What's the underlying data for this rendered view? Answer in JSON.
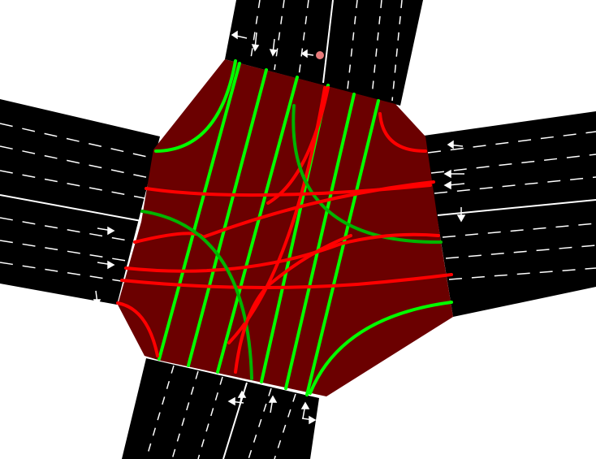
{
  "colors": {
    "background": "#ffffff",
    "road": "#000000",
    "lane_marking": "#ffffff",
    "junction": "#6b0000",
    "signal_green": "#00ff00",
    "signal_green_dark": "#00b400",
    "signal_red": "#ff0000",
    "vehicle_dot": "#e87a7a"
  },
  "roads": [
    {
      "name": "road-north",
      "lanes": 6
    },
    {
      "name": "road-west",
      "lanes": 7
    },
    {
      "name": "road-east",
      "lanes": 7
    },
    {
      "name": "road-south",
      "lanes": 6
    }
  ],
  "connections": [
    {
      "id": "n-turn-w",
      "state": "green"
    },
    {
      "id": "n-straight-1",
      "state": "green"
    },
    {
      "id": "n-straight-2",
      "state": "green"
    },
    {
      "id": "n-straight-3",
      "state": "green"
    },
    {
      "id": "n-straight-4",
      "state": "green"
    },
    {
      "id": "n-straight-5",
      "state": "green"
    },
    {
      "id": "n-turn-e",
      "state": "red"
    },
    {
      "id": "n-turn-e-long",
      "state": "red"
    },
    {
      "id": "n-turn-se",
      "state": "green_dark"
    },
    {
      "id": "e-turn-n",
      "state": "red"
    },
    {
      "id": "w-through-1",
      "state": "red"
    },
    {
      "id": "w-through-2",
      "state": "red"
    },
    {
      "id": "w-through-3",
      "state": "red"
    },
    {
      "id": "w-through-4",
      "state": "red"
    },
    {
      "id": "w-turn-s",
      "state": "green_dark"
    },
    {
      "id": "w-turn-sw",
      "state": "red"
    },
    {
      "id": "s-turn-n",
      "state": "red"
    },
    {
      "id": "e-turn-s",
      "state": "green"
    }
  ],
  "vehicles": [
    {
      "id": "vehicle-1",
      "kind": "dot"
    }
  ]
}
